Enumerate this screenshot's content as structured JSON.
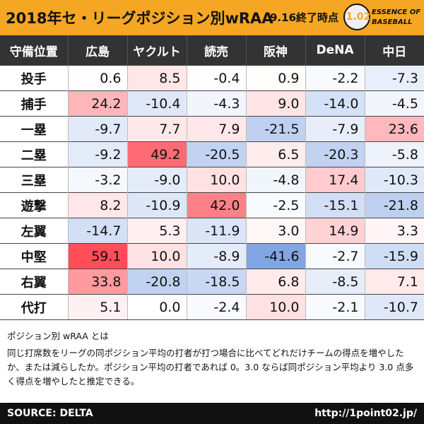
{
  "title": {
    "main": "2018年セ・リーグポジション別wRAA",
    "sub": "9.16終了時点"
  },
  "logo": {
    "number": "1.02",
    "line1": "ESSENCE OF",
    "line2": "BASEBALL"
  },
  "table": {
    "corner_label": "守備位置",
    "teams": [
      "広島",
      "ヤクルト",
      "読売",
      "阪神",
      "DeNA",
      "中日"
    ],
    "rows": [
      {
        "position": "投手",
        "values": [
          "0.6",
          "8.5",
          "-0.4",
          "0.9",
          "-2.2",
          "-7.3"
        ]
      },
      {
        "position": "捕手",
        "values": [
          "24.2",
          "-10.4",
          "-4.3",
          "9.0",
          "-14.0",
          "-4.5"
        ]
      },
      {
        "position": "一塁",
        "values": [
          "-9.7",
          "7.7",
          "7.9",
          "-21.5",
          "-7.9",
          "23.6"
        ]
      },
      {
        "position": "二塁",
        "values": [
          "-9.2",
          "49.2",
          "-20.5",
          "6.5",
          "-20.3",
          "-5.8"
        ]
      },
      {
        "position": "三塁",
        "values": [
          "-3.2",
          "-9.0",
          "10.0",
          "-4.8",
          "17.4",
          "-10.3"
        ]
      },
      {
        "position": "遊撃",
        "values": [
          "8.2",
          "-10.9",
          "42.0",
          "-2.5",
          "-15.1",
          "-21.8"
        ]
      },
      {
        "position": "左翼",
        "values": [
          "-14.7",
          "5.3",
          "-11.9",
          "3.0",
          "14.9",
          "3.3"
        ]
      },
      {
        "position": "中堅",
        "values": [
          "59.1",
          "10.0",
          "-8.9",
          "-41.6",
          "-2.7",
          "-15.9"
        ]
      },
      {
        "position": "右翼",
        "values": [
          "33.8",
          "-20.8",
          "-18.5",
          "6.8",
          "-8.5",
          "7.1"
        ]
      },
      {
        "position": "代打",
        "values": [
          "5.1",
          "0.0",
          "-2.4",
          "10.0",
          "-2.1",
          "-10.7"
        ]
      }
    ]
  },
  "description": {
    "title": "ポジション別 wRAA とは",
    "body": "同じ打席数をリーグの同ポジション平均の打者が打つ場合に比べてどれだけチームの得点を増やしたか、または減らしたか。ポジション平均の打者であれば 0。3.0 ならば同ポジション平均より 3.0 点多く得点を増やしたと推定できる。"
  },
  "footer": {
    "source": "SOURCE: DELTA",
    "url": "http://1point02.jp/"
  },
  "colors": {
    "accent": "#f5a623",
    "header_bg": "#333333",
    "positive": "#e8424f",
    "negative": "#3a6fc4"
  }
}
